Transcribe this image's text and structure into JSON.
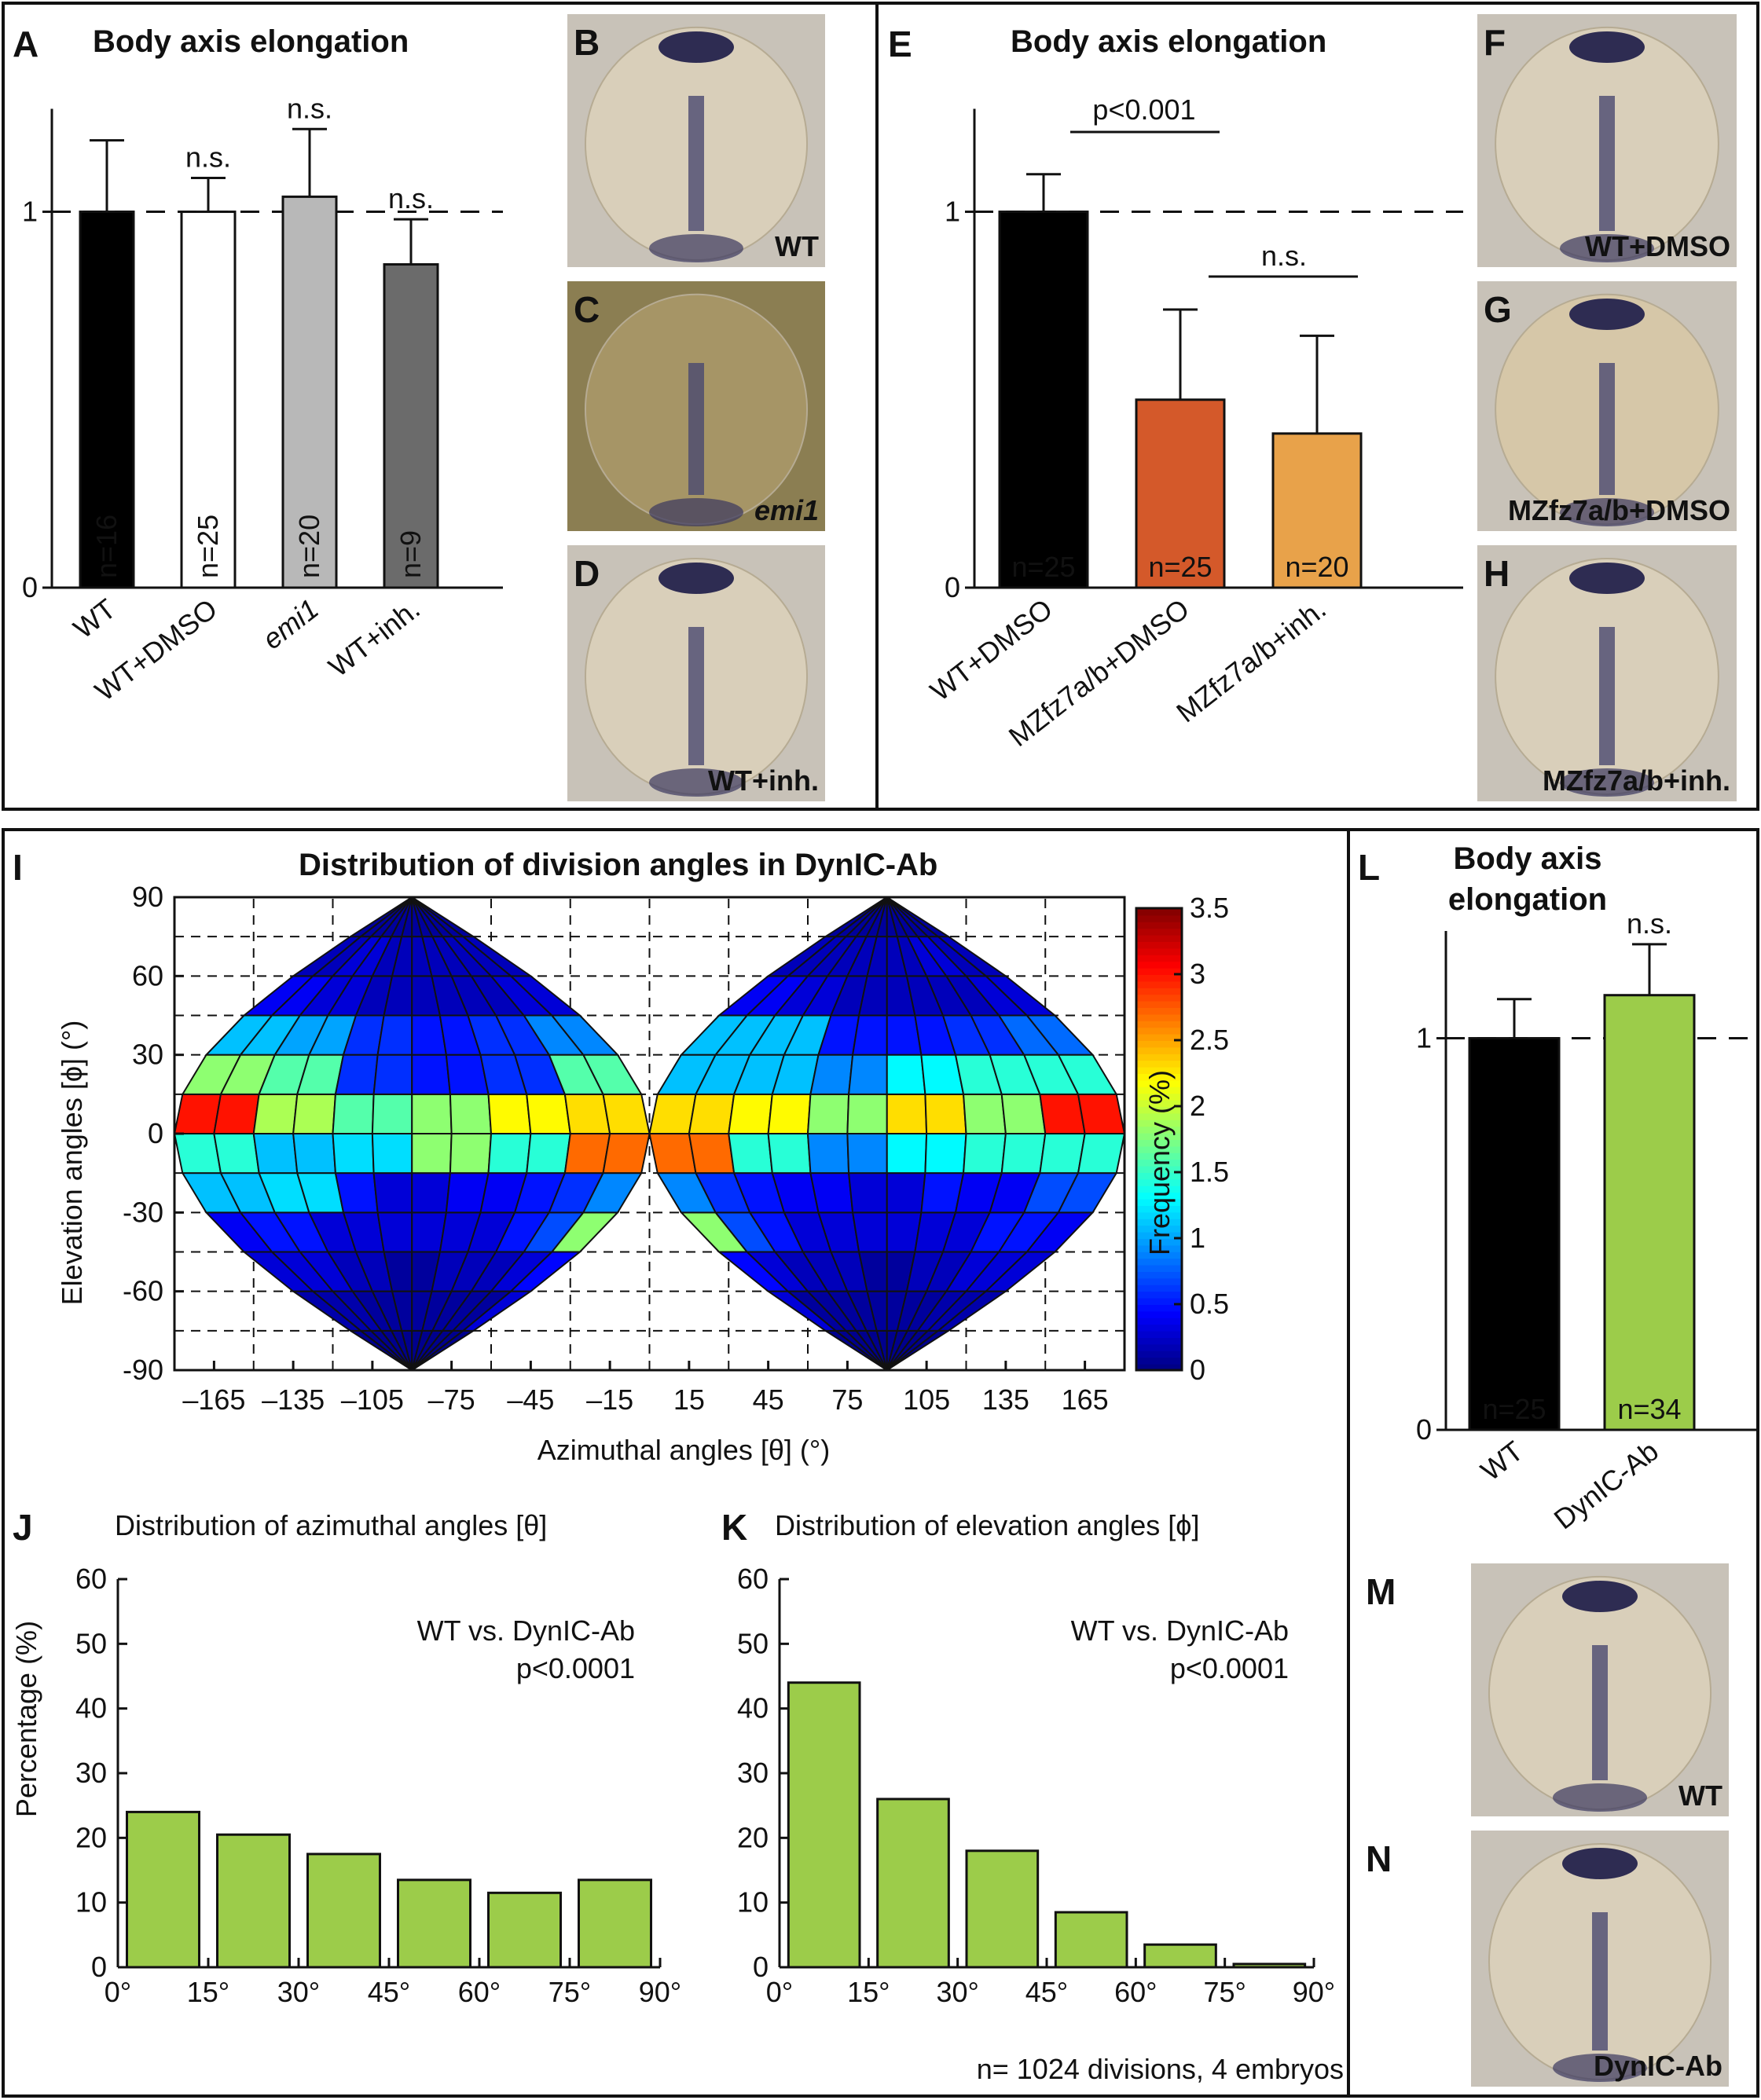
{
  "panels": {
    "A": {
      "label": "A",
      "title": "Body axis elongation",
      "ticks": [
        "0",
        "1"
      ],
      "annotation": "n.s."
    },
    "E": {
      "label": "E",
      "title": "Body axis elongation",
      "ticks": [
        "0",
        "1"
      ],
      "sig_label_1": "p<0.001",
      "sig_label_2": "n.s."
    },
    "I": {
      "label": "I",
      "title": "Distribution of division angles in DynIC-Ab",
      "xlabel": "Azimuthal angles [θ] (°)",
      "ylabel": "Elevation angles [ϕ] (°)",
      "xticks": [
        "–165",
        "–135",
        "–105",
        "–75",
        "–45",
        "–15",
        "15",
        "45",
        "75",
        "105",
        "135",
        "165"
      ],
      "yticks": [
        "90",
        "60",
        "30",
        "0",
        "-30",
        "-60",
        "-90"
      ],
      "colorbar_label": "Frequency (%)",
      "colorbar_ticks": [
        "0",
        "0.5",
        "1",
        "1.5",
        "2",
        "2.5",
        "3",
        "3.5"
      ]
    },
    "J": {
      "label": "J",
      "title": "Distribution of azimuthal angles [θ]",
      "ylabel": "Percentage (%)",
      "annotation_1": "WT vs. DynIC-Ab",
      "annotation_2": "p<0.0001"
    },
    "K": {
      "label": "K",
      "title": "Distribution of elevation angles [ϕ]",
      "annotation_1": "WT vs. DynIC-Ab",
      "annotation_2": "p<0.0001",
      "footnote": "n= 1024 divisions, 4 embryos"
    },
    "L": {
      "label": "L",
      "title_line1": "Body axis",
      "title_line2": "elongation",
      "ticks": [
        "0",
        "1"
      ],
      "annotation": "n.s."
    }
  },
  "embryo_panels": [
    {
      "letter": "B",
      "caption": "WT"
    },
    {
      "letter": "C",
      "caption": "emi1"
    },
    {
      "letter": "D",
      "caption": "WT+inh."
    },
    {
      "letter": "F",
      "caption": "WT+DMSO"
    },
    {
      "letter": "G",
      "caption": "MZfz7a/b+DMSO"
    },
    {
      "letter": "H",
      "caption": "MZfz7a/b+inh."
    },
    {
      "letter": "M",
      "caption": "WT"
    },
    {
      "letter": "N",
      "caption": "DynIC-Ab"
    }
  ],
  "chart_data": [
    {
      "id": "A",
      "type": "bar",
      "title": "Body axis elongation",
      "ylim": [
        0,
        1.3
      ],
      "categories": [
        "WT",
        "WT+DMSO",
        "emi1",
        "WT+inh."
      ],
      "values": [
        1.0,
        1.0,
        1.04,
        0.86
      ],
      "errors": [
        0.19,
        0.09,
        0.18,
        0.12
      ],
      "n_labels": [
        "n=16",
        "n=25",
        "n=20",
        "n=9"
      ],
      "colors": [
        "#000000",
        "#ffffff",
        "#b8b8b8",
        "#6b6b6b"
      ],
      "annotations": [
        "",
        "n.s.",
        "n.s.",
        "n.s."
      ],
      "reference_line": 1
    },
    {
      "id": "E",
      "type": "bar",
      "title": "Body axis elongation",
      "ylim": [
        0,
        1.3
      ],
      "categories": [
        "WT+DMSO",
        "MZfz7a/b+DMSO",
        "MZfz7a/b+inh."
      ],
      "values": [
        1.0,
        0.5,
        0.41
      ],
      "errors": [
        0.1,
        0.24,
        0.26
      ],
      "n_labels": [
        "n=25",
        "n=25",
        "n=20"
      ],
      "colors": [
        "#000000",
        "#d4592a",
        "#e8a24a"
      ],
      "reference_line": 1
    },
    {
      "id": "I",
      "type": "heatmap",
      "title": "Distribution of division angles in DynIC-Ab",
      "xlabel": "Azimuthal angles [θ] (°)",
      "ylabel": "Elevation angles [ϕ] (°)",
      "x_range": [
        -180,
        180
      ],
      "y_range": [
        -90,
        90
      ],
      "bin_width_deg": 15,
      "color_range": [
        0,
        3.5
      ],
      "colormap": "jet",
      "bands_bottom_to_top": [
        -90,
        -75,
        -60,
        -45,
        -30,
        -15,
        0,
        15,
        30,
        45,
        60,
        75,
        90
      ],
      "west_hemisphere_columns": [
        -180,
        -165,
        -150,
        -135,
        -120,
        -105,
        -90,
        -75,
        -60,
        -45,
        -30,
        -15,
        0
      ],
      "east_hemisphere_columns": [
        0,
        15,
        30,
        45,
        60,
        75,
        90,
        105,
        120,
        135,
        150,
        165,
        180
      ],
      "west_values_by_band": [
        [
          0.05,
          0.05,
          0.05,
          0.05,
          0.05,
          0.05,
          0.05,
          0.05,
          0.05,
          0.05,
          0.05,
          0.05
        ],
        [
          0.15,
          0.15,
          0.15,
          0.1,
          0.1,
          0.1,
          0.1,
          0.1,
          0.1,
          0.1,
          0.1,
          0.3
        ],
        [
          0.3,
          0.3,
          0.3,
          0.2,
          0.2,
          0.1,
          0.1,
          0.2,
          0.2,
          0.2,
          0.3,
          0.45
        ],
        [
          0.4,
          0.5,
          0.5,
          0.3,
          0.3,
          0.3,
          0.3,
          0.3,
          0.3,
          0.5,
          0.7,
          1.8
        ],
        [
          1.1,
          1.1,
          1.2,
          1.2,
          0.5,
          0.3,
          0.3,
          0.4,
          0.4,
          0.5,
          0.6,
          0.9
        ],
        [
          1.45,
          1.45,
          1.1,
          1.1,
          1.2,
          1.2,
          1.8,
          1.8,
          1.45,
          1.45,
          2.7,
          2.7
        ],
        [
          3.0,
          3.0,
          1.9,
          1.9,
          1.6,
          1.6,
          1.8,
          1.8,
          2.2,
          2.2,
          2.3,
          2.3
        ],
        [
          1.8,
          1.8,
          1.6,
          1.6,
          0.6,
          0.6,
          0.5,
          0.5,
          0.6,
          0.6,
          1.6,
          1.6
        ],
        [
          1.1,
          1.1,
          1.0,
          1.0,
          0.6,
          0.6,
          0.5,
          0.5,
          0.6,
          0.6,
          0.9,
          0.9
        ],
        [
          0.4,
          0.4,
          0.3,
          0.3,
          0.2,
          0.2,
          0.2,
          0.2,
          0.2,
          0.2,
          0.3,
          0.3
        ],
        [
          0.2,
          0.2,
          0.3,
          0.3,
          0.2,
          0.2,
          0.2,
          0.2,
          0.2,
          0.2,
          0.2,
          0.2
        ],
        [
          0.1,
          0.1,
          0.1,
          0.1,
          0.1,
          0.1,
          0.1,
          0.1,
          0.1,
          0.1,
          0.1,
          0.1
        ]
      ],
      "east_values_by_band": [
        [
          0.05,
          0.05,
          0.05,
          0.05,
          0.05,
          0.05,
          0.05,
          0.05,
          0.05,
          0.05,
          0.05,
          0.05
        ],
        [
          0.3,
          0.1,
          0.1,
          0.1,
          0.1,
          0.1,
          0.1,
          0.1,
          0.1,
          0.15,
          0.15,
          0.15
        ],
        [
          0.45,
          0.3,
          0.2,
          0.2,
          0.2,
          0.1,
          0.1,
          0.2,
          0.2,
          0.3,
          0.3,
          0.3
        ],
        [
          1.8,
          0.7,
          0.5,
          0.3,
          0.3,
          0.3,
          0.3,
          0.3,
          0.3,
          0.5,
          0.5,
          0.4
        ],
        [
          0.9,
          0.6,
          0.5,
          0.4,
          0.4,
          0.3,
          0.3,
          0.5,
          0.4,
          0.4,
          0.7,
          0.7
        ],
        [
          2.7,
          2.7,
          1.45,
          1.45,
          0.9,
          0.9,
          1.3,
          1.3,
          1.45,
          1.45,
          1.45,
          1.45
        ],
        [
          2.3,
          2.3,
          2.2,
          2.2,
          1.8,
          1.8,
          2.3,
          2.3,
          1.8,
          1.8,
          3.0,
          3.0
        ],
        [
          1.1,
          1.1,
          1.1,
          1.1,
          0.9,
          0.9,
          1.3,
          1.3,
          1.45,
          1.45,
          1.45,
          1.45
        ],
        [
          1.1,
          1.1,
          1.1,
          1.1,
          0.5,
          0.5,
          0.5,
          0.5,
          0.6,
          0.6,
          0.8,
          0.8
        ],
        [
          0.4,
          0.4,
          0.3,
          0.3,
          0.2,
          0.2,
          0.2,
          0.2,
          0.2,
          0.2,
          0.3,
          0.3
        ],
        [
          0.2,
          0.2,
          0.2,
          0.2,
          0.2,
          0.2,
          0.2,
          0.2,
          0.3,
          0.3,
          0.2,
          0.2
        ],
        [
          0.1,
          0.1,
          0.1,
          0.1,
          0.1,
          0.1,
          0.1,
          0.1,
          0.1,
          0.1,
          0.1,
          0.1
        ]
      ]
    },
    {
      "id": "J",
      "type": "bar",
      "title": "Distribution of azimuthal angles [θ]",
      "ylabel": "Percentage (%)",
      "ylim": [
        0,
        60
      ],
      "yticks": [
        "0",
        "10",
        "20",
        "30",
        "40",
        "50",
        "60"
      ],
      "xticks": [
        "0°",
        "15°",
        "30°",
        "45°",
        "60°",
        "75°",
        "90°"
      ],
      "bins": [
        [
          0,
          15
        ],
        [
          15,
          30
        ],
        [
          30,
          45
        ],
        [
          45,
          60
        ],
        [
          60,
          75
        ],
        [
          75,
          90
        ]
      ],
      "values": [
        24,
        20.5,
        17.5,
        13.5,
        11.5,
        13.5
      ],
      "color": "#9ccc4a"
    },
    {
      "id": "K",
      "type": "bar",
      "title": "Distribution of elevation angles [ϕ]",
      "ylim": [
        0,
        60
      ],
      "yticks": [
        "0",
        "10",
        "20",
        "30",
        "40",
        "50",
        "60"
      ],
      "xticks": [
        "0°",
        "15°",
        "30°",
        "45°",
        "60°",
        "75°",
        "90°"
      ],
      "bins": [
        [
          0,
          15
        ],
        [
          15,
          30
        ],
        [
          30,
          45
        ],
        [
          45,
          60
        ],
        [
          60,
          75
        ],
        [
          75,
          90
        ]
      ],
      "values": [
        44,
        26,
        18,
        8.5,
        3.5,
        0.5
      ],
      "color": "#9ccc4a"
    },
    {
      "id": "L",
      "type": "bar",
      "title": "Body axis elongation",
      "ylim": [
        0,
        1.3
      ],
      "categories": [
        "WT",
        "DynIC-Ab"
      ],
      "values": [
        1.0,
        1.11
      ],
      "errors": [
        0.1,
        0.13
      ],
      "n_labels": [
        "n=25",
        "n=34"
      ],
      "colors": [
        "#000000",
        "#9ccc4a"
      ],
      "annotations": [
        "",
        "n.s."
      ],
      "reference_line": 1
    }
  ]
}
